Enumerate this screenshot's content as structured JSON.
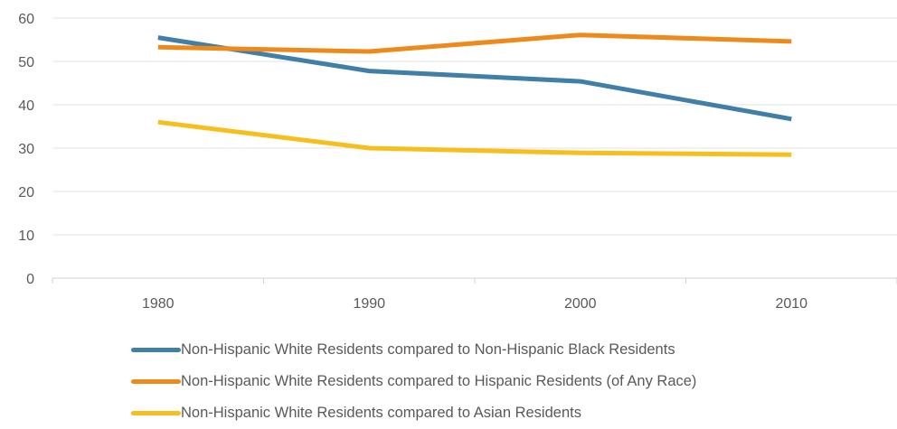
{
  "chart_data": {
    "type": "line",
    "categories": [
      "1980",
      "1990",
      "2000",
      "2010"
    ],
    "y_ticks": [
      "0",
      "10",
      "20",
      "30",
      "40",
      "50",
      "60"
    ],
    "ylim": [
      0,
      60
    ],
    "grid": true,
    "legend_position": "bottom",
    "series": [
      {
        "name": "Non-Hispanic White Residents compared to Non-Hispanic Black Residents",
        "color": "#3F7FA8",
        "values": [
          55.5,
          47.8,
          45.4,
          36.7
        ]
      },
      {
        "name": "Non-Hispanic White Residents compared to Hispanic Residents (of Any Race)",
        "color": "#EE8A1C",
        "values": [
          53.3,
          52.3,
          56.1,
          54.6
        ]
      },
      {
        "name": "Non-Hispanic White Residents compared to Asian Residents",
        "color": "#F6BF1E",
        "values": [
          36.0,
          30.0,
          28.9,
          28.5
        ]
      }
    ]
  }
}
